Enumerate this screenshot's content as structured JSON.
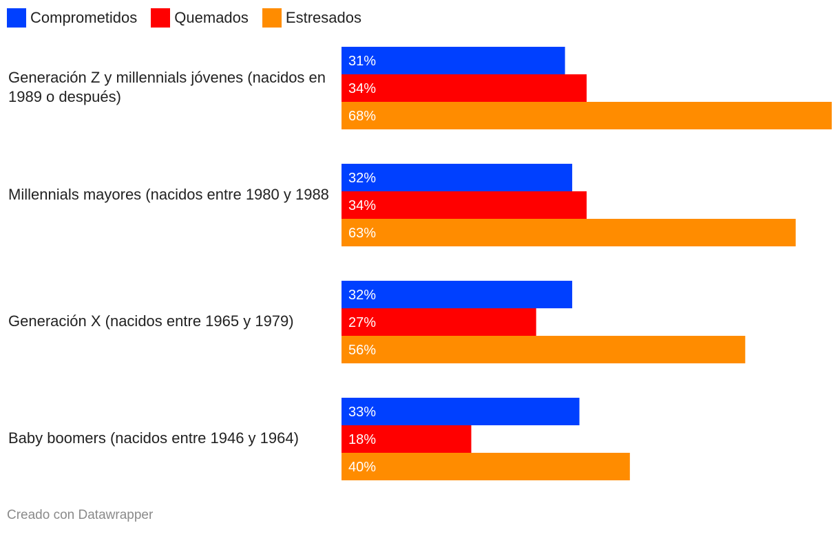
{
  "chart_data": {
    "type": "bar",
    "orientation": "horizontal",
    "legend_position": "top-left",
    "categories": [
      "Generación Z y millennials jóvenes (nacidos en 1989 o después)",
      "Millennials mayores (nacidos entre 1980 y 1988",
      "Generación X (nacidos entre 1965 y 1979)",
      "Baby boomers (nacidos entre 1946 y 1964)"
    ],
    "series": [
      {
        "name": "Comprometidos",
        "color": "#0040ff",
        "values": [
          31,
          32,
          32,
          33
        ],
        "labels": [
          "31%",
          "32%",
          "32%",
          "33%"
        ]
      },
      {
        "name": "Quemados",
        "color": "#ff0000",
        "values": [
          34,
          34,
          27,
          18
        ],
        "labels": [
          "34%",
          "34%",
          "27%",
          "18%"
        ]
      },
      {
        "name": "Estresados",
        "color": "#ff8c00",
        "values": [
          68,
          63,
          56,
          40
        ],
        "labels": [
          "68%",
          "63%",
          "56%",
          "40%"
        ]
      }
    ],
    "xlim": [
      0,
      68
    ],
    "grid": false,
    "credit": "Creado con Datawrapper"
  }
}
